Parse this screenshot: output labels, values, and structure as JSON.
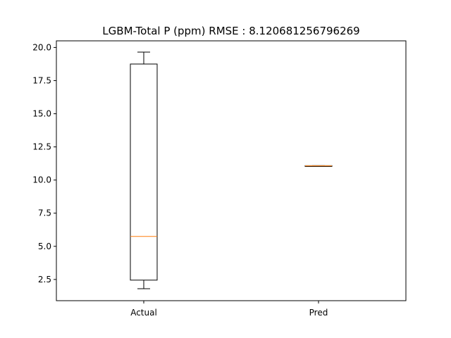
{
  "chart_data": {
    "type": "box",
    "title": "LGBM-Total P (ppm) RMSE : 8.120681256796269",
    "xlabel": "",
    "ylabel": "",
    "ylim": [
      0.9,
      20.5
    ],
    "yticks": [
      2.5,
      5.0,
      7.5,
      10.0,
      12.5,
      15.0,
      17.5,
      20.0
    ],
    "ytick_labels": [
      "2.5",
      "5.0",
      "7.5",
      "10.0",
      "12.5",
      "15.0",
      "17.5",
      "20.0"
    ],
    "categories": [
      "Actual",
      "Pred"
    ],
    "boxes": [
      {
        "label": "Actual",
        "whisker_low": 1.8,
        "q1": 2.45,
        "median": 5.75,
        "q3": 18.75,
        "whisker_high": 19.65
      },
      {
        "label": "Pred",
        "whisker_low": 11.06,
        "q1": 11.06,
        "median": 11.07,
        "q3": 11.08,
        "whisker_high": 11.08
      }
    ],
    "colors": {
      "box": "#000000",
      "median": "#ff7f0e"
    },
    "grid": false,
    "legend": "none"
  }
}
